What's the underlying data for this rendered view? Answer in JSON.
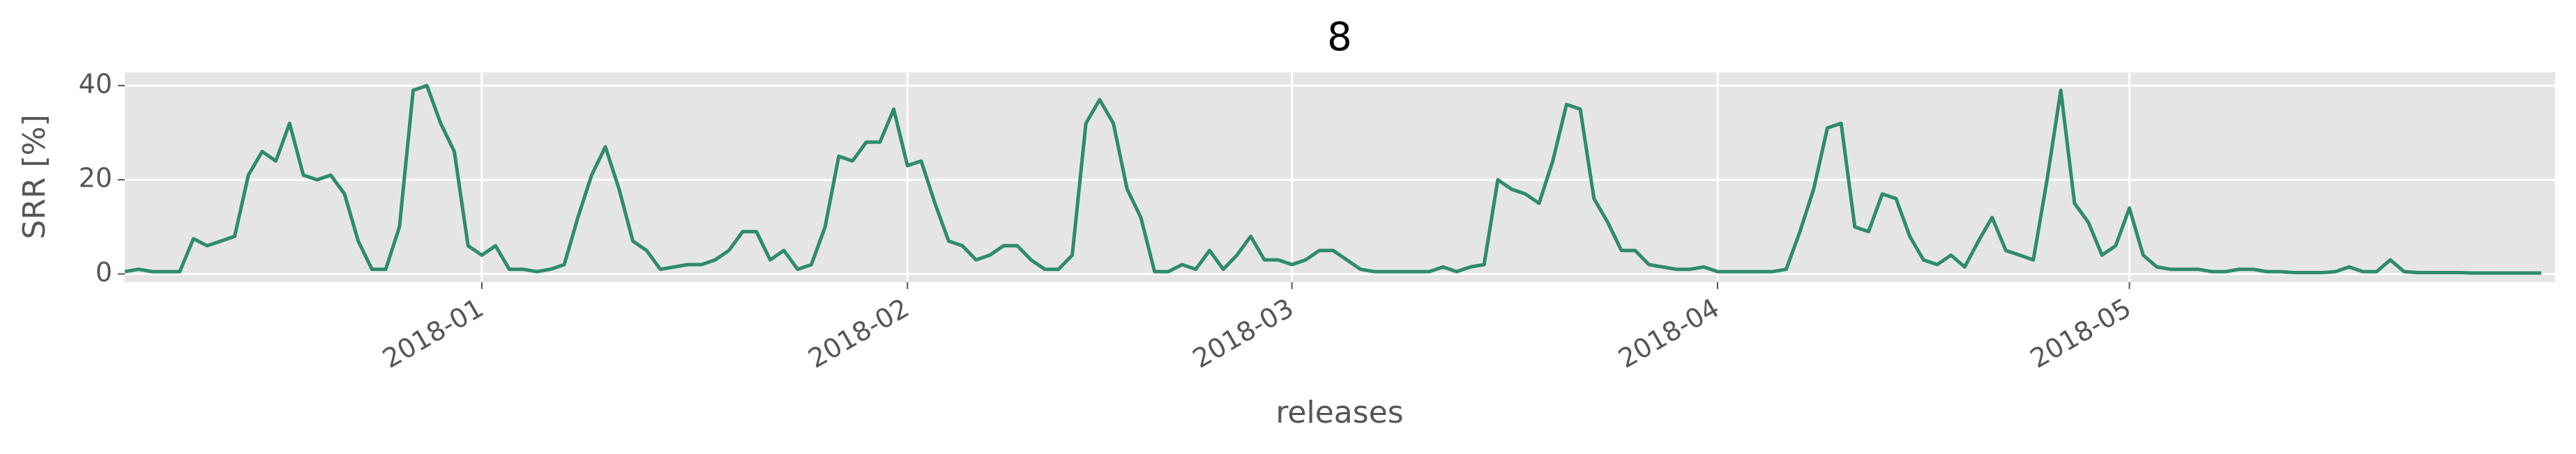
{
  "chart_data": {
    "type": "line",
    "title": "8",
    "xlabel": "releases",
    "ylabel": "SRR [%]",
    "x": [
      "2017-12-06",
      "2017-12-07",
      "2017-12-08",
      "2017-12-09",
      "2017-12-10",
      "2017-12-11",
      "2017-12-12",
      "2017-12-13",
      "2017-12-14",
      "2017-12-15",
      "2017-12-16",
      "2017-12-17",
      "2017-12-18",
      "2017-12-19",
      "2017-12-20",
      "2017-12-21",
      "2017-12-22",
      "2017-12-23",
      "2017-12-24",
      "2017-12-25",
      "2017-12-26",
      "2017-12-27",
      "2017-12-28",
      "2017-12-29",
      "2017-12-30",
      "2017-12-31",
      "2018-01-01",
      "2018-01-02",
      "2018-01-03",
      "2018-01-04",
      "2018-01-05",
      "2018-01-06",
      "2018-01-07",
      "2018-01-08",
      "2018-01-09",
      "2018-01-10",
      "2018-01-11",
      "2018-01-12",
      "2018-01-13",
      "2018-01-14",
      "2018-01-15",
      "2018-01-16",
      "2018-01-17",
      "2018-01-18",
      "2018-01-19",
      "2018-01-20",
      "2018-01-21",
      "2018-01-22",
      "2018-01-23",
      "2018-01-24",
      "2018-01-25",
      "2018-01-26",
      "2018-01-27",
      "2018-01-28",
      "2018-01-29",
      "2018-01-30",
      "2018-01-31",
      "2018-02-01",
      "2018-02-02",
      "2018-02-03",
      "2018-02-04",
      "2018-02-05",
      "2018-02-06",
      "2018-02-07",
      "2018-02-08",
      "2018-02-09",
      "2018-02-10",
      "2018-02-11",
      "2018-02-12",
      "2018-02-13",
      "2018-02-14",
      "2018-02-15",
      "2018-02-16",
      "2018-02-17",
      "2018-02-18",
      "2018-02-19",
      "2018-02-20",
      "2018-02-21",
      "2018-02-22",
      "2018-02-23",
      "2018-02-24",
      "2018-02-25",
      "2018-02-26",
      "2018-02-27",
      "2018-02-28",
      "2018-03-01",
      "2018-03-02",
      "2018-03-03",
      "2018-03-04",
      "2018-03-05",
      "2018-03-06",
      "2018-03-07",
      "2018-03-08",
      "2018-03-09",
      "2018-03-10",
      "2018-03-11",
      "2018-03-12",
      "2018-03-13",
      "2018-03-14",
      "2018-03-15",
      "2018-03-16",
      "2018-03-17",
      "2018-03-18",
      "2018-03-19",
      "2018-03-20",
      "2018-03-21",
      "2018-03-22",
      "2018-03-23",
      "2018-03-24",
      "2018-03-25",
      "2018-03-26",
      "2018-03-27",
      "2018-03-28",
      "2018-03-29",
      "2018-03-30",
      "2018-03-31",
      "2018-04-01",
      "2018-04-02",
      "2018-04-03",
      "2018-04-04",
      "2018-04-05",
      "2018-04-06",
      "2018-04-07",
      "2018-04-08",
      "2018-04-09",
      "2018-04-10",
      "2018-04-11",
      "2018-04-12",
      "2018-04-13",
      "2018-04-14",
      "2018-04-15",
      "2018-04-16",
      "2018-04-17",
      "2018-04-18",
      "2018-04-19",
      "2018-04-20",
      "2018-04-21",
      "2018-04-22",
      "2018-04-23",
      "2018-04-24",
      "2018-04-25",
      "2018-04-26",
      "2018-04-27",
      "2018-04-28",
      "2018-04-29",
      "2018-04-30",
      "2018-05-01",
      "2018-05-02",
      "2018-05-03",
      "2018-05-04",
      "2018-05-05",
      "2018-05-06",
      "2018-05-07",
      "2018-05-08",
      "2018-05-09",
      "2018-05-10",
      "2018-05-11",
      "2018-05-12",
      "2018-05-13",
      "2018-05-14",
      "2018-05-15",
      "2018-05-16",
      "2018-05-17",
      "2018-05-18",
      "2018-05-19",
      "2018-05-20",
      "2018-05-21",
      "2018-05-22",
      "2018-05-23",
      "2018-05-24",
      "2018-05-25",
      "2018-05-26",
      "2018-05-27",
      "2018-05-28",
      "2018-05-29",
      "2018-05-30",
      "2018-05-31"
    ],
    "values": [
      0.5,
      1,
      0.5,
      0.5,
      0.5,
      7.5,
      6,
      7,
      8,
      21,
      26,
      24,
      32,
      21,
      20,
      21,
      17,
      7,
      1,
      1,
      10,
      39,
      40,
      32,
      26,
      6,
      4,
      6,
      1,
      1,
      0.5,
      1,
      2,
      12,
      21,
      27,
      18,
      7,
      5,
      1,
      1.5,
      2,
      2,
      3,
      5,
      9,
      9,
      3,
      5,
      1,
      2,
      10,
      25,
      24,
      28,
      28,
      35,
      23,
      24,
      15,
      7,
      6,
      3,
      4,
      6,
      6,
      3,
      1,
      1,
      4,
      32,
      37,
      32,
      18,
      12,
      0.5,
      0.5,
      2,
      1,
      5,
      1,
      4,
      8,
      3,
      3,
      2,
      3,
      5,
      5,
      3,
      1,
      0.5,
      0.5,
      0.5,
      0.5,
      0.5,
      1.5,
      0.5,
      1.5,
      2,
      20,
      18,
      17,
      15,
      24,
      36,
      35,
      16,
      11,
      5,
      5,
      2,
      1.5,
      1,
      1,
      1.5,
      0.5,
      0.5,
      0.5,
      0.5,
      0.5,
      1,
      9,
      18,
      31,
      32,
      10,
      9,
      17,
      16,
      8,
      3,
      2,
      4,
      1.5,
      7,
      12,
      5,
      4,
      3,
      20,
      39,
      15,
      11,
      4,
      6,
      14,
      4,
      1.5,
      1,
      1,
      1,
      0.5,
      0.5,
      1,
      1,
      0.5,
      0.5,
      0.3,
      0.3,
      0.3,
      0.5,
      1.5,
      0.5,
      0.5,
      3,
      0.5,
      0.3,
      0.3,
      0.3,
      0.3,
      0.2,
      0.2,
      0.2,
      0.2,
      0.2,
      0.2
    ],
    "color": "#2e8b6b",
    "xlim": [
      "2017-12-06",
      "2018-06-01"
    ],
    "xticks": [
      "2018-01",
      "2018-02",
      "2018-03",
      "2018-04",
      "2018-05"
    ],
    "ylim": [
      -1.7,
      42.8
    ],
    "yticks": [
      0,
      20,
      40
    ],
    "grid": true
  }
}
